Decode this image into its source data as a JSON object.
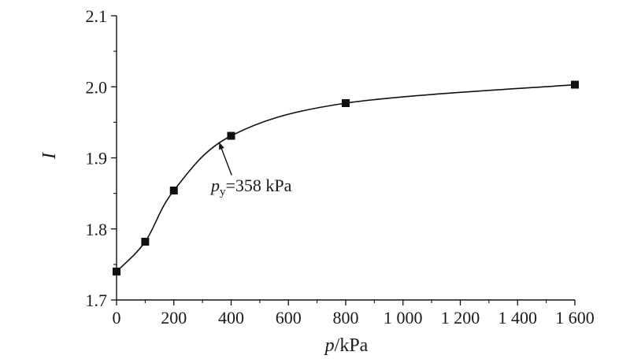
{
  "chart_data": {
    "type": "line",
    "xlabel_var": "p",
    "xlabel_unit": "/kPa",
    "ylabel": "I",
    "xlim": [
      0,
      1600
    ],
    "ylim": [
      1.7,
      2.1
    ],
    "x_ticks": [
      0,
      200,
      400,
      600,
      800,
      1000,
      1200,
      1400,
      1600
    ],
    "x_tick_labels": [
      "0",
      "200",
      "400",
      "600",
      "800",
      "1 000",
      "1 200",
      "1 400",
      "1 600"
    ],
    "y_ticks": [
      1.7,
      1.8,
      1.9,
      2.0,
      2.1
    ],
    "y_tick_labels": [
      "1.7",
      "1.8",
      "1.9",
      "2.0",
      "2.1"
    ],
    "series": [
      {
        "x": [
          0,
          100,
          200,
          400,
          800,
          1600
        ],
        "y": [
          1.74,
          1.782,
          1.854,
          1.931,
          1.977,
          2.003
        ],
        "marker": "square",
        "color": "#111111"
      }
    ],
    "annotation": {
      "var": "p",
      "sub": "y",
      "value_text": "=358 kPa",
      "x": 358,
      "y": 1.922
    },
    "grid": false,
    "legend": "none"
  }
}
